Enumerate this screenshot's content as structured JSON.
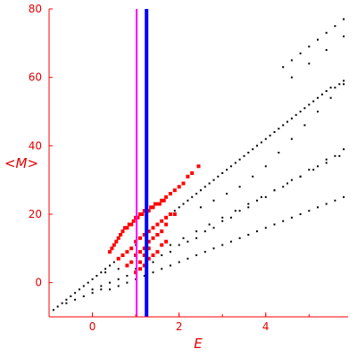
{
  "chart_data": {
    "type": "scatter",
    "title": "",
    "xlabel": "E",
    "ylabel": "<M>",
    "xlim": [
      -1,
      5.9
    ],
    "ylim": [
      -10,
      80
    ],
    "xticks": [
      0,
      2,
      4
    ],
    "xtick_labels": [
      "0",
      "2",
      "4"
    ],
    "yticks": [
      0,
      20,
      40,
      60,
      80
    ],
    "ytick_labels": [
      "0",
      "20",
      "40",
      "60",
      "80"
    ],
    "grid": false,
    "legend": "none",
    "vertical_lines": [
      {
        "x": 1.02,
        "color": "#ff00ff"
      },
      {
        "x": 1.25,
        "color": "#0000ff"
      }
    ],
    "series": [
      {
        "color": "#000000",
        "marker": "small-dot",
        "x": [
          -0.9,
          -0.8,
          -0.7,
          -0.6,
          -0.5,
          -0.4,
          -0.3,
          -0.2,
          -0.1,
          0.0,
          0.1,
          0.2,
          0.3,
          0.4,
          0.5,
          0.6,
          0.7,
          0.8,
          0.9,
          1.0,
          1.1,
          1.2,
          1.3,
          1.4,
          1.5,
          1.6,
          1.7,
          1.8,
          1.9,
          2.0,
          2.1,
          2.2,
          2.3,
          2.4,
          2.5,
          2.6,
          2.7,
          2.8,
          2.9,
          3.0,
          3.1,
          3.2,
          3.3,
          3.4,
          3.5,
          3.6,
          3.7,
          3.8,
          3.9,
          4.0,
          4.1,
          4.2,
          4.3,
          4.4,
          4.5,
          4.6,
          4.7,
          4.8,
          4.9,
          5.0,
          5.1,
          5.2,
          5.3,
          5.4,
          5.5,
          5.6,
          5.7,
          5.8,
          -0.6,
          -0.4,
          -0.2,
          0.0,
          0.2,
          0.4,
          0.6,
          0.8,
          1.0,
          1.2,
          1.4,
          1.6,
          1.8,
          2.0,
          2.2,
          2.4,
          2.6,
          2.8,
          3.0,
          3.2,
          3.4,
          3.6,
          3.8,
          4.0,
          4.2,
          4.4,
          4.6,
          4.8,
          5.0,
          5.2,
          5.4,
          5.6,
          5.8,
          0.0,
          0.2,
          0.4,
          0.6,
          0.8,
          1.0,
          1.2,
          1.4,
          1.6,
          1.8,
          2.0,
          2.2,
          2.4,
          2.6,
          2.8,
          3.0,
          3.2,
          3.4,
          3.6,
          3.8,
          4.0,
          4.2,
          4.4,
          4.6,
          4.8,
          5.0,
          5.2,
          5.4,
          5.6,
          5.8,
          0.3,
          0.6,
          0.9,
          1.2,
          1.5,
          1.8,
          2.1,
          2.4,
          2.7,
          3.0,
          3.3,
          3.6,
          3.9,
          4.2,
          4.5,
          4.8,
          5.1,
          5.4,
          5.7,
          4.4,
          4.6,
          4.8,
          5.0,
          5.2,
          5.4,
          5.6,
          5.8,
          4.6,
          5.0,
          5.4,
          5.8,
          2.5,
          2.8,
          3.1,
          3.4,
          3.7,
          4.0,
          4.3,
          4.6,
          4.9,
          5.2,
          5.5,
          5.8
        ],
        "y": [
          -8,
          -7,
          -6,
          -5,
          -4,
          -3,
          -2,
          -1,
          0,
          1,
          2,
          3,
          4,
          5,
          6,
          7,
          8,
          9,
          10,
          11,
          13,
          14,
          15,
          16,
          17,
          18,
          19,
          20,
          21,
          22,
          23,
          24,
          25,
          26,
          27,
          28,
          29,
          30,
          31,
          32,
          33,
          34,
          35,
          36,
          37,
          38,
          39,
          40,
          41,
          42,
          43,
          44,
          45,
          46,
          47,
          48,
          49,
          50,
          51,
          52,
          53,
          54,
          55,
          56,
          57,
          57,
          58,
          59,
          -6,
          -5,
          -4,
          -2,
          -1,
          0,
          1,
          2,
          4,
          5,
          6,
          8,
          9,
          11,
          12,
          13,
          15,
          16,
          18,
          19,
          21,
          22,
          24,
          25,
          27,
          28,
          30,
          31,
          33,
          34,
          36,
          37,
          39,
          -3,
          -2,
          -2,
          -1,
          0,
          1,
          2,
          3,
          4,
          5,
          6,
          7,
          8,
          9,
          10,
          11,
          12,
          13,
          14,
          15,
          16,
          17,
          18,
          19,
          20,
          21,
          22,
          23,
          24,
          25,
          3,
          4,
          6,
          8,
          9,
          11,
          13,
          15,
          17,
          19,
          21,
          23,
          25,
          27,
          29,
          31,
          33,
          35,
          37,
          63,
          65,
          67,
          69,
          71,
          73,
          75,
          77,
          60,
          64,
          68,
          72,
          22,
          24,
          26,
          28,
          31,
          34,
          38,
          42,
          46,
          50,
          54,
          58
        ]
      },
      {
        "color": "#ff0000",
        "marker": "square",
        "x": [
          0.4,
          0.45,
          0.5,
          0.55,
          0.6,
          0.65,
          0.7,
          0.75,
          0.8,
          0.85,
          0.9,
          0.95,
          1.0,
          1.05,
          1.1,
          1.15,
          1.2,
          1.25,
          1.3,
          1.35,
          1.4,
          1.45,
          1.5,
          1.55,
          1.6,
          1.65,
          1.7,
          1.8,
          1.9,
          2.0,
          2.1,
          2.2,
          2.3,
          2.45,
          0.6,
          0.7,
          0.8,
          0.9,
          1.0,
          1.1,
          1.2,
          1.3,
          1.4,
          1.5,
          1.6,
          1.7,
          1.8,
          0.8,
          0.9,
          1.0,
          1.1,
          1.2,
          1.3,
          1.4,
          1.5,
          1.6,
          1.0,
          1.1,
          1.2,
          1.3,
          1.4,
          1.5,
          1.6,
          1.7,
          1.1,
          1.2,
          1.3,
          1.5,
          1.7,
          1.9
        ],
        "y": [
          9,
          10,
          11,
          12,
          13,
          14,
          15,
          16,
          16,
          17,
          17,
          18,
          19,
          19,
          20,
          20,
          21,
          21,
          21,
          22,
          22,
          23,
          23,
          23,
          24,
          24,
          25,
          26,
          27,
          28,
          29,
          31,
          32,
          34,
          7,
          8,
          9,
          10,
          12,
          13,
          14,
          15,
          16,
          17,
          18,
          19,
          20,
          5,
          6,
          8,
          9,
          10,
          12,
          13,
          14,
          15,
          3,
          4,
          5,
          7,
          8,
          9,
          11,
          12,
          6,
          8,
          10,
          14,
          17,
          20
        ]
      }
    ]
  }
}
